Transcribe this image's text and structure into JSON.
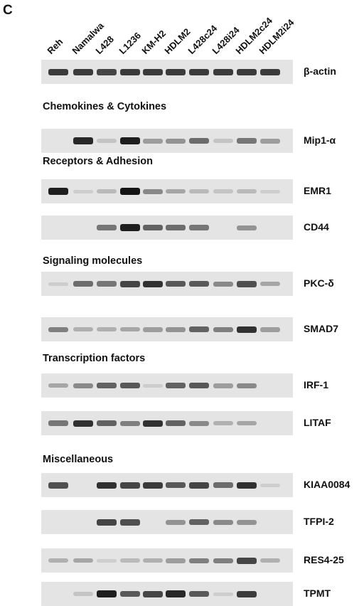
{
  "panel_label": "C",
  "lanes": [
    "Reh",
    "Namalwa",
    "L428",
    "L1236",
    "KM-H2",
    "HDLM2",
    "L428c24",
    "L428i24",
    "HDLM2c24",
    "HDLM2i24"
  ],
  "sections": [
    {
      "id": "chemokines",
      "title": "Chemokines & Cytokines"
    },
    {
      "id": "receptors",
      "title": "Receptors & Adhesion"
    },
    {
      "id": "signaling",
      "title": "Signaling molecules"
    },
    {
      "id": "transcription",
      "title": "Transcription factors"
    },
    {
      "id": "misc",
      "title": "Miscellaneous"
    }
  ],
  "genes": [
    {
      "label": "β-actin",
      "intensity": [
        0.8,
        0.8,
        0.75,
        0.8,
        0.8,
        0.8,
        0.8,
        0.8,
        0.8,
        0.8
      ]
    },
    {
      "label": "Mip1-α",
      "intensity": [
        0,
        0.9,
        0.1,
        0.95,
        0.3,
        0.35,
        0.55,
        0.1,
        0.5,
        0.3
      ]
    },
    {
      "label": "EMR1",
      "intensity": [
        0.95,
        0.05,
        0.15,
        1.0,
        0.4,
        0.25,
        0.15,
        0.1,
        0.15,
        0.05
      ]
    },
    {
      "label": "CD44",
      "intensity": [
        0,
        0,
        0.5,
        0.95,
        0.6,
        0.55,
        0.5,
        0,
        0.35,
        0
      ]
    },
    {
      "label": "PKC-δ",
      "intensity": [
        0.05,
        0.55,
        0.5,
        0.75,
        0.85,
        0.65,
        0.65,
        0.4,
        0.7,
        0.25
      ]
    },
    {
      "label": "SMAD7",
      "intensity": [
        0.45,
        0.2,
        0.2,
        0.25,
        0.3,
        0.35,
        0.6,
        0.45,
        0.85,
        0.3
      ]
    },
    {
      "label": "IRF-1",
      "intensity": [
        0.25,
        0.4,
        0.6,
        0.65,
        0.05,
        0.6,
        0.65,
        0.3,
        0.4,
        0
      ]
    },
    {
      "label": "LITAF",
      "intensity": [
        0.5,
        0.85,
        0.6,
        0.45,
        0.85,
        0.6,
        0.4,
        0.2,
        0.25,
        0
      ]
    },
    {
      "label": "KIAA0084",
      "intensity": [
        0.7,
        0,
        0.85,
        0.75,
        0.8,
        0.65,
        0.75,
        0.55,
        0.85,
        0.05
      ]
    },
    {
      "label": "TFPI-2",
      "intensity": [
        0,
        0,
        0.75,
        0.7,
        0,
        0.35,
        0.6,
        0.4,
        0.35,
        0
      ]
    },
    {
      "label": "RES4-25",
      "intensity": [
        0.2,
        0.25,
        0.05,
        0.15,
        0.2,
        0.3,
        0.45,
        0.45,
        0.75,
        0.2
      ]
    },
    {
      "label": "TPMT",
      "intensity": [
        0,
        0.1,
        0.95,
        0.65,
        0.75,
        0.9,
        0.65,
        0.05,
        0.8,
        0
      ]
    }
  ]
}
